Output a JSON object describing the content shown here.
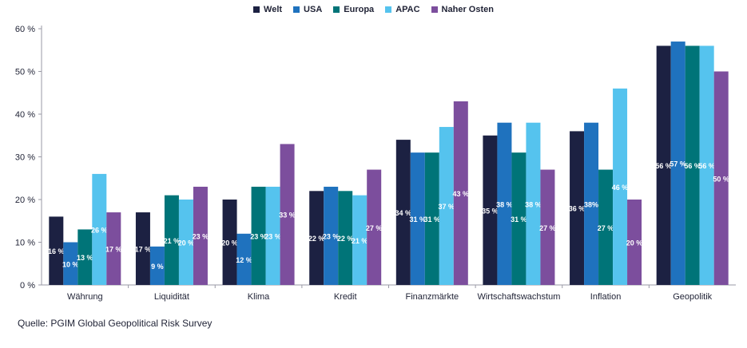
{
  "chart_data": {
    "type": "bar",
    "categories": [
      "Währung",
      "Liquidität",
      "Klima",
      "Kredit",
      "Finanzmärkte",
      "Wirtschaftswachstum",
      "Inflation",
      "Geopolitik"
    ],
    "series": [
      {
        "name": "Welt",
        "color": "#1c2142",
        "values": [
          16,
          17,
          20,
          22,
          34,
          35,
          36,
          56
        ]
      },
      {
        "name": "USA",
        "color": "#1f72be",
        "values": [
          10,
          9,
          12,
          23,
          31,
          38,
          38,
          57
        ]
      },
      {
        "name": "Europa",
        "color": "#007478",
        "values": [
          13,
          21,
          23,
          22,
          31,
          31,
          27,
          56
        ]
      },
      {
        "name": "APAC",
        "color": "#55c3ee",
        "values": [
          26,
          20,
          23,
          21,
          37,
          38,
          46,
          56
        ]
      },
      {
        "name": "Naher Osten",
        "color": "#7c4e9d",
        "values": [
          17,
          23,
          33,
          27,
          43,
          27,
          20,
          50
        ]
      }
    ],
    "value_labels": [
      [
        "16 %",
        "17 %",
        "20 %",
        "22 %",
        "34 %",
        "35 %",
        "36 %",
        "56 %"
      ],
      [
        "10 %",
        "9 %",
        "12 %",
        "23 %",
        "31 %",
        "38 %",
        "38%",
        "57 %"
      ],
      [
        "13 %",
        "21 %",
        "23 %",
        "22 %",
        "31 %",
        "31 %",
        "27 %",
        "56 %"
      ],
      [
        "26 %",
        "20 %",
        "23 %",
        "21 %",
        "37 %",
        "38 %",
        "46 %",
        "56 %"
      ],
      [
        "17 %",
        "23 %",
        "33 %",
        "27 %",
        "43 %",
        "27 %",
        "20 %",
        "50 %"
      ]
    ],
    "ylim": [
      0,
      60
    ],
    "yticks": [
      0,
      10,
      20,
      30,
      40,
      50,
      60
    ],
    "ytick_labels": [
      "0 %",
      "10 %",
      "20 %",
      "30 %",
      "40 %",
      "50 %",
      "60 %"
    ],
    "legend_position": "top-center",
    "grid": false
  },
  "source": "Quelle: PGIM Global Geopolitical Risk Survey"
}
